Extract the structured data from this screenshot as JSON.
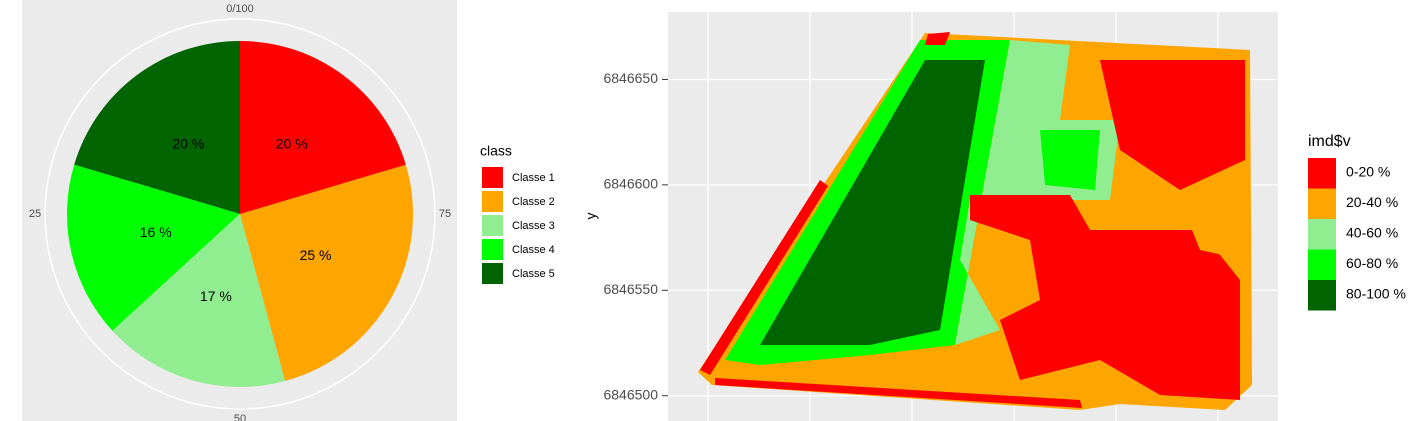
{
  "chart_data": [
    {
      "type": "pie",
      "categories": [
        "Classe 1",
        "Classe 2",
        "Classe 3",
        "Classe 4",
        "Classe 5"
      ],
      "values": [
        20.4,
        25.4,
        17.4,
        16.4,
        20.4
      ],
      "value_labels": [
        "20 %",
        "25 %",
        "17 %",
        "16 %",
        "20 %"
      ],
      "colors": [
        "#ff0000",
        "#ffa500",
        "#90ee90",
        "#00ff00",
        "#006400"
      ],
      "legend_title": "class",
      "legend": "right",
      "thetalim": [
        0,
        100
      ],
      "thetaticks": [
        {
          "value": 0,
          "label": "0/100"
        },
        25,
        50,
        75
      ],
      "direction": "counterclockwise"
    },
    {
      "type": "raster",
      "ylabel": "y",
      "ylim": [
        6846488,
        6846682
      ],
      "yticks": [
        6846500,
        6846550,
        6846600,
        6846650
      ],
      "legend_title": "imd$v",
      "legend": "right",
      "categories": [
        "0-20 %",
        "20-40 %",
        "40-60 %",
        "60-80 %",
        "80-100 %"
      ],
      "colors": [
        "#ff0000",
        "#ffa500",
        "#90ee90",
        "#00ff00",
        "#006400"
      ],
      "grid": true
    }
  ]
}
